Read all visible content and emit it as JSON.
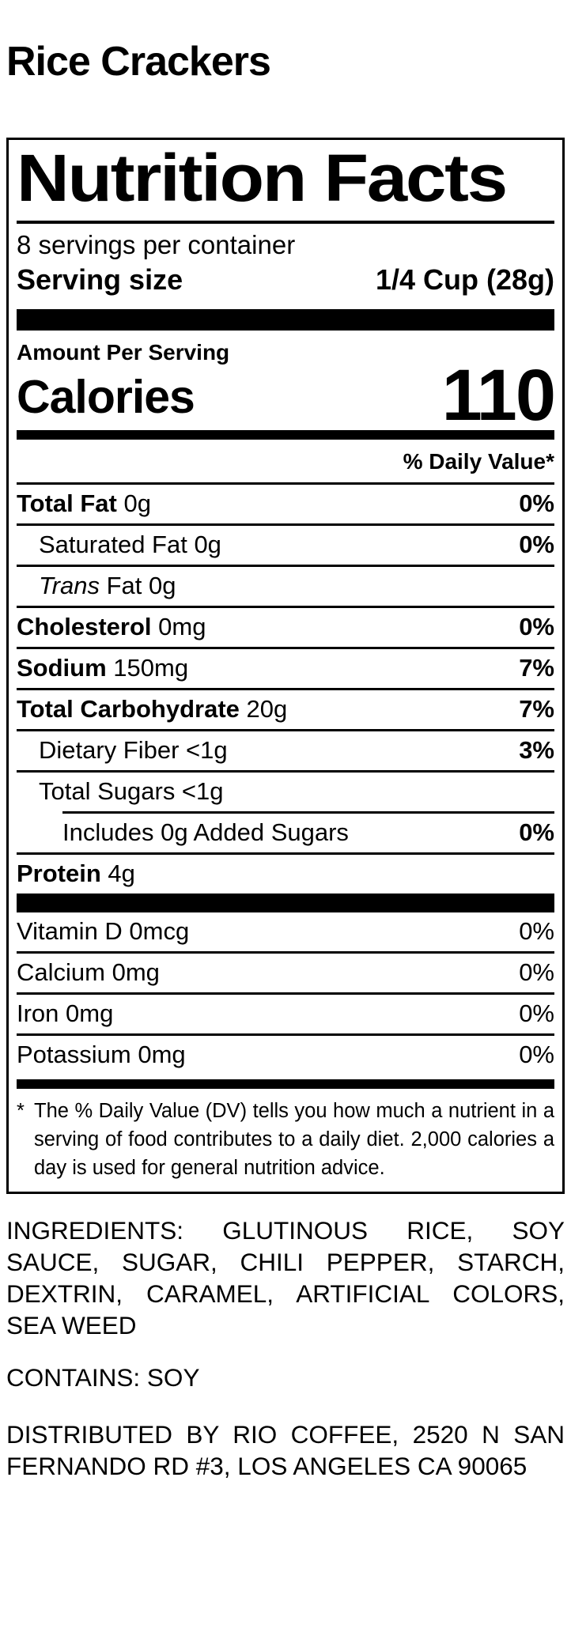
{
  "page": {
    "title": "Rice Crackers",
    "background_color": "#ffffff",
    "text_color": "#000000"
  },
  "label": {
    "title": "Nutrition Facts",
    "servings_per_container": "8 servings per container",
    "serving_size_label": "Serving size",
    "serving_size_value": "1/4 Cup (28g)",
    "amount_per_serving": "Amount Per Serving",
    "calories_label": "Calories",
    "calories_value": "110",
    "daily_value_header": "% Daily Value*",
    "rows": [
      {
        "bold": "Total Fat",
        "text": " 0g",
        "dv": "0%",
        "indent": 0,
        "rule_above": "full"
      },
      {
        "text": "Saturated Fat 0g",
        "dv": "0%",
        "indent": 1,
        "rule_above": "full"
      },
      {
        "italic": "Trans",
        "text": " Fat 0g",
        "dv": "",
        "indent": 1,
        "rule_above": "full"
      },
      {
        "bold": "Cholesterol",
        "text": " 0mg",
        "dv": "0%",
        "indent": 0,
        "rule_above": "full"
      },
      {
        "bold": "Sodium",
        "text": " 150mg",
        "dv": "7%",
        "indent": 0,
        "rule_above": "full"
      },
      {
        "bold": "Total Carbohydrate",
        "text": " 20g",
        "dv": "7%",
        "indent": 0,
        "rule_above": "full"
      },
      {
        "text": "Dietary Fiber <1g",
        "dv": "3%",
        "indent": 1,
        "rule_above": "full"
      },
      {
        "text": "Total Sugars <1g",
        "dv": "",
        "indent": 1,
        "rule_above": "full"
      },
      {
        "text": "Includes 0g Added Sugars",
        "dv": "0%",
        "indent": 2,
        "rule_above": "indent"
      },
      {
        "bold": "Protein",
        "text": " 4g",
        "dv": "",
        "indent": 0,
        "rule_above": "full"
      }
    ],
    "vitamins": [
      {
        "text": "Vitamin D 0mcg",
        "dv": "0%",
        "rule_above": "none"
      },
      {
        "text": "Calcium 0mg",
        "dv": "0%",
        "rule_above": "full"
      },
      {
        "text": "Iron 0mg",
        "dv": "0%",
        "rule_above": "full"
      },
      {
        "text": "Potassium 0mg",
        "dv": "0%",
        "rule_above": "full"
      }
    ],
    "footnote_marker": "*",
    "footnote": "The % Daily Value (DV) tells you how much a nutrient in a serving of food contributes to a daily diet. 2,000 calories a day is used for general nutrition advice."
  },
  "details": {
    "ingredients": "INGREDIENTS: GLUTINOUS RICE, SOY SAUCE, SUGAR, CHILI PEPPER, STARCH, DEXTRIN, CARAMEL, ARTIFICIAL COLORS, SEA WEED",
    "contains": "CONTAINS: SOY",
    "distributor": "DISTRIBUTED BY RIO COFFEE, 2520 N SAN FERNANDO RD #3, LOS ANGELES CA 90065"
  }
}
